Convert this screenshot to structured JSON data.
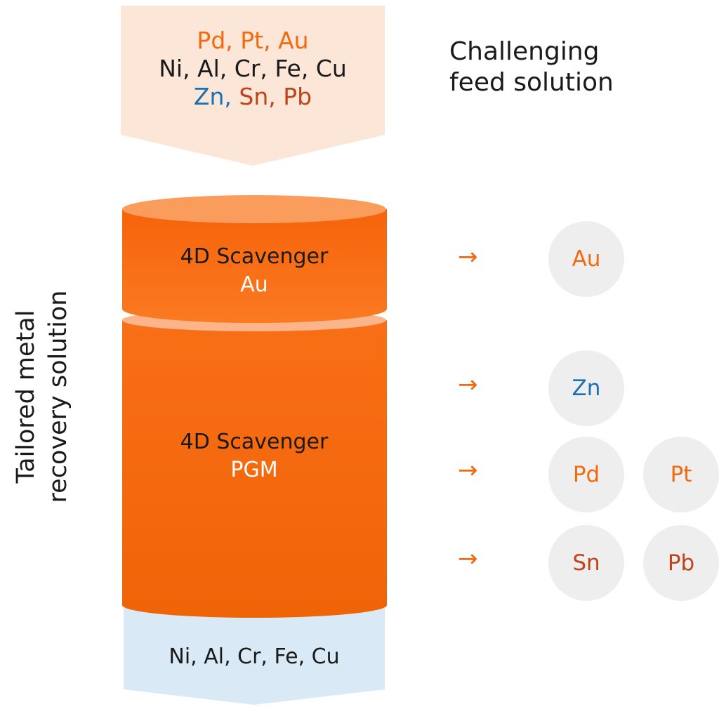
{
  "feed": {
    "line1": "Pd, Pt, Au",
    "line2": "Ni, Al, Cr, Fe, Cu",
    "line3_zn": "Zn,",
    "line3_rest": " Sn, Pb"
  },
  "feed_caption": {
    "line1": "Challenging",
    "line2": "feed solution"
  },
  "side_label": {
    "line1": "Tailored metal",
    "line2": "recovery solution"
  },
  "stages": [
    {
      "title": "4D Scavenger",
      "target": "Au"
    },
    {
      "title": "4D Scavenger",
      "target": "PGM"
    }
  ],
  "output": {
    "text": "Ni, Al, Cr, Fe, Cu"
  },
  "arrow_glyph": "→",
  "recovered": [
    {
      "label": "Au",
      "color": "#f26a10"
    },
    {
      "label": "Zn",
      "color": "#1b6fb5"
    },
    {
      "label": "Pd",
      "color": "#f26a10"
    },
    {
      "label": "Pt",
      "color": "#f26a10"
    },
    {
      "label": "Sn",
      "color": "#c0441a"
    },
    {
      "label": "Pb",
      "color": "#c0441a"
    }
  ],
  "colors": {
    "pgm": "#f26a10",
    "zn": "#1b6fb5",
    "sn_pb": "#c0441a",
    "feed_bg": "#fbe6d8",
    "output_bg": "#d9eaf6",
    "cylinder": "#f7680f",
    "circle_bg": "#eeeeee"
  }
}
